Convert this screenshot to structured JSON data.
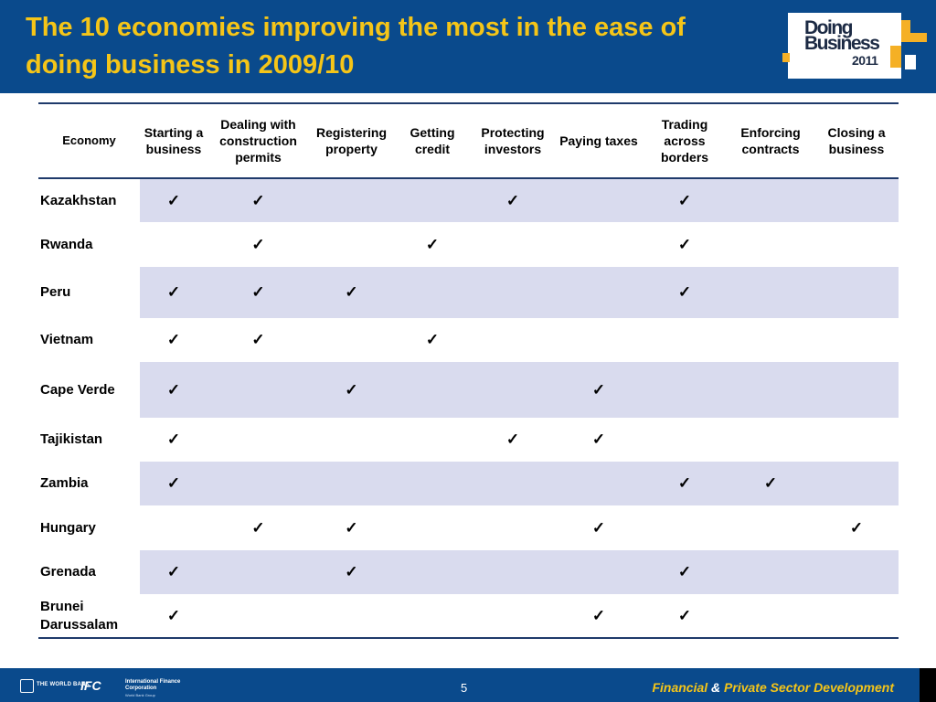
{
  "title": "The 10 economies improving the most in the ease of doing business in 2009/10",
  "logo": {
    "line1": "Doing",
    "line2": "Business",
    "year": "2011"
  },
  "table": {
    "headers": [
      "Economy",
      "Starting a business",
      "Dealing with construction permits",
      "Registering property",
      "Getting credit",
      "Protecting investors",
      "Paying taxes",
      "Trading across borders",
      "Enforcing contracts",
      "Closing a business"
    ],
    "check_symbol": "✓",
    "rows": [
      {
        "economy": "Kazakhstan",
        "checks": [
          true,
          true,
          false,
          false,
          true,
          false,
          true,
          false,
          false
        ]
      },
      {
        "economy": "Rwanda",
        "checks": [
          false,
          true,
          false,
          true,
          false,
          false,
          true,
          false,
          false
        ]
      },
      {
        "economy": "Peru",
        "checks": [
          true,
          true,
          true,
          false,
          false,
          false,
          true,
          false,
          false
        ]
      },
      {
        "economy": "Vietnam",
        "checks": [
          true,
          true,
          false,
          true,
          false,
          false,
          false,
          false,
          false
        ]
      },
      {
        "economy": "Cape Verde",
        "checks": [
          true,
          false,
          true,
          false,
          false,
          true,
          false,
          false,
          false
        ]
      },
      {
        "economy": "Tajikistan",
        "checks": [
          true,
          false,
          false,
          false,
          true,
          true,
          false,
          false,
          false
        ]
      },
      {
        "economy": "Zambia",
        "checks": [
          true,
          false,
          false,
          false,
          false,
          false,
          true,
          true,
          false
        ]
      },
      {
        "economy": "Hungary",
        "checks": [
          false,
          true,
          true,
          false,
          false,
          true,
          false,
          false,
          true
        ]
      },
      {
        "economy": "Grenada",
        "checks": [
          true,
          false,
          true,
          false,
          false,
          false,
          true,
          false,
          false
        ]
      },
      {
        "economy": "Brunei Darussalam",
        "checks": [
          true,
          false,
          false,
          false,
          false,
          true,
          true,
          false,
          false
        ]
      }
    ]
  },
  "footer": {
    "world_bank": "THE WORLD BANK",
    "ifc_mark": "IFC",
    "ifc_name": "International Finance Corporation",
    "ifc_sub": "World Bank Group",
    "page_number": "5",
    "fpsd_part1": "Financial",
    "fpsd_amp": " & ",
    "fpsd_part2": "Private Sector Development"
  },
  "colors": {
    "header_bg": "#0a4a8c",
    "title": "#f5c518",
    "row_shade": "#d9dbee",
    "rule": "#1f3a6b"
  }
}
